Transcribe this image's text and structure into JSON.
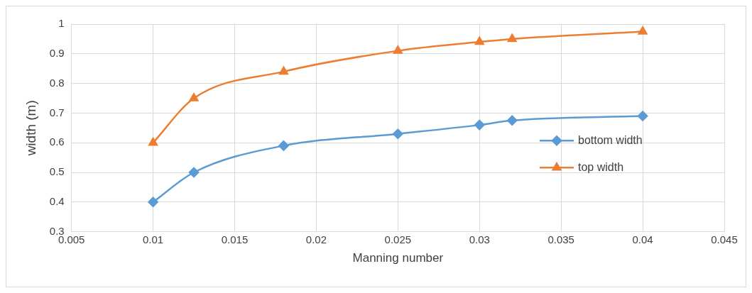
{
  "chart_data": {
    "type": "line",
    "xlabel": "Manning number",
    "ylabel": "width (m)",
    "x": [
      0.01,
      0.0125,
      0.018,
      0.025,
      0.03,
      0.032,
      0.04
    ],
    "series": [
      {
        "name": "bottom width",
        "color": "#5b9bd5",
        "marker": "diamond",
        "values": [
          0.4,
          0.5,
          0.59,
          0.63,
          0.66,
          0.675,
          0.69
        ]
      },
      {
        "name": "top width",
        "color": "#ed7d31",
        "marker": "triangle",
        "values": [
          0.6,
          0.75,
          0.84,
          0.91,
          0.94,
          0.95,
          0.975
        ]
      }
    ],
    "xlim": [
      0.005,
      0.045
    ],
    "xticks": [
      0.005,
      0.01,
      0.015,
      0.02,
      0.025,
      0.03,
      0.035,
      0.04,
      0.045
    ],
    "ylim": [
      0.3,
      1
    ],
    "yticks": [
      0.3,
      0.4,
      0.5,
      0.6,
      0.7,
      0.8,
      0.9,
      1
    ],
    "grid": true,
    "legend": "right"
  }
}
